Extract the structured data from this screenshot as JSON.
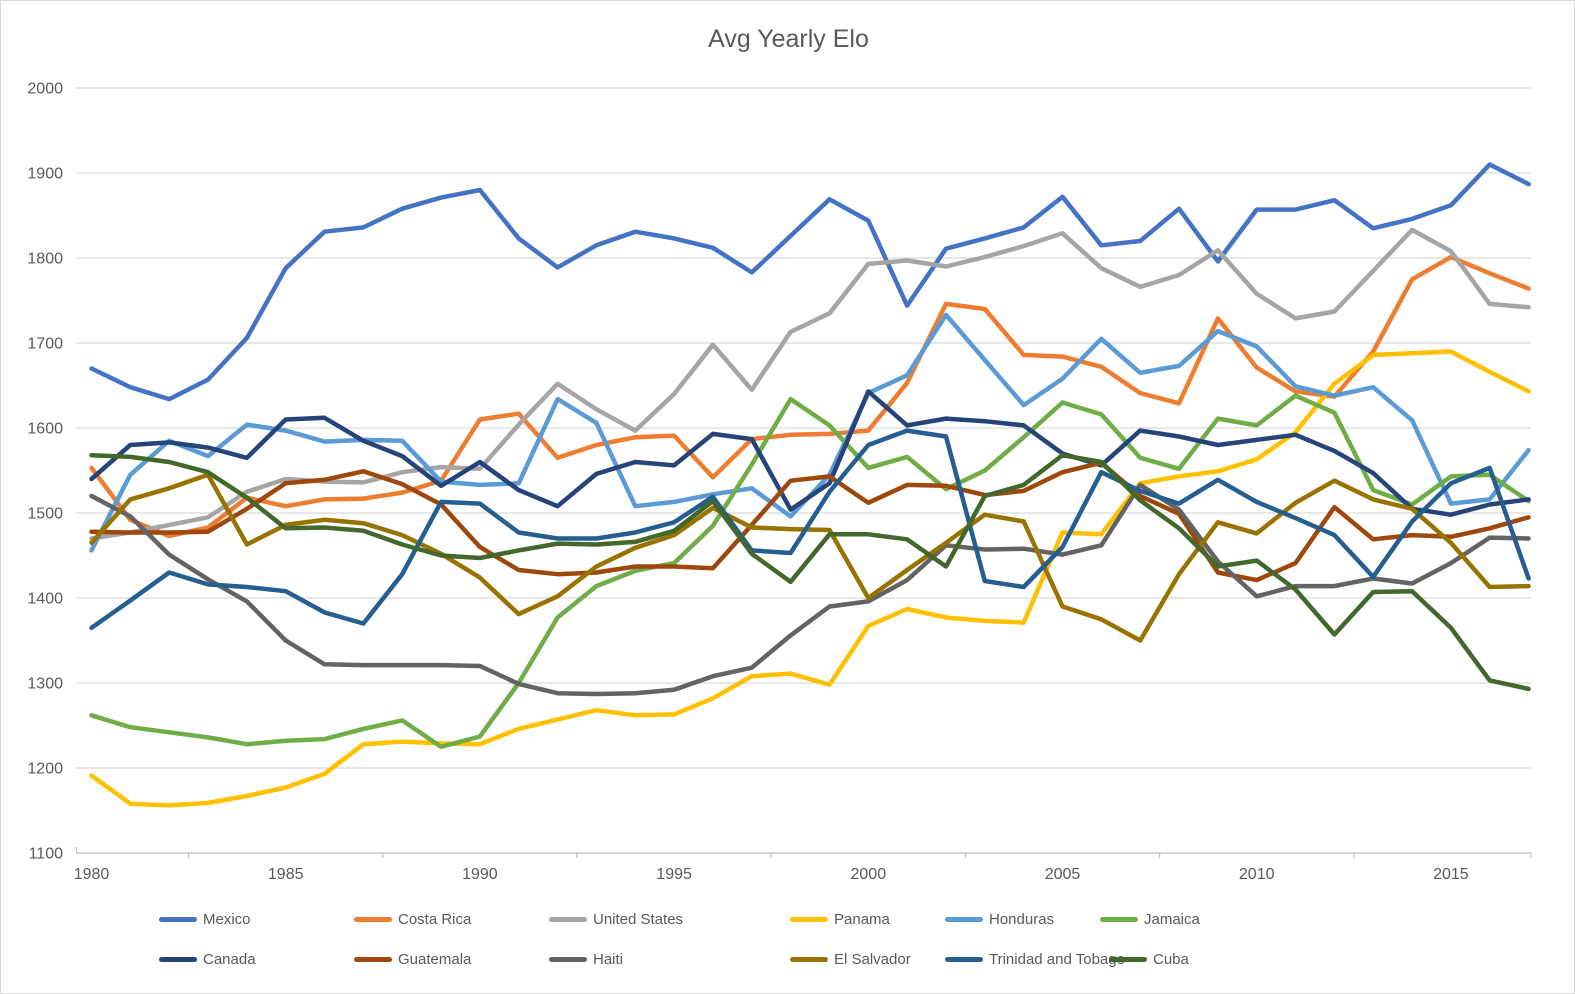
{
  "title": "Avg Yearly Elo",
  "axis": {
    "y_ticks": [
      1100,
      1200,
      1300,
      1400,
      1500,
      1600,
      1700,
      1800,
      1900,
      2000
    ],
    "x_ticks": [
      1980,
      1985,
      1990,
      1995,
      2000,
      2005,
      2010,
      2015
    ],
    "grid_color": "#d9d9d9",
    "axis_line_color": "#bfbfbf",
    "tick_label_color": "#595959"
  },
  "chart_data": {
    "type": "line",
    "title": "Avg Yearly Elo",
    "xlabel": "",
    "ylabel": "",
    "ylim": [
      1100,
      2000
    ],
    "grid": true,
    "legend_position": "bottom",
    "x": [
      1980,
      1981,
      1982,
      1983,
      1984,
      1985,
      1986,
      1987,
      1988,
      1989,
      1990,
      1991,
      1992,
      1993,
      1994,
      1995,
      1996,
      1997,
      1998,
      1999,
      2000,
      2001,
      2002,
      2003,
      2004,
      2005,
      2006,
      2007,
      2008,
      2009,
      2010,
      2011,
      2012,
      2013,
      2014,
      2015,
      2016,
      2017
    ],
    "series": [
      {
        "name": "Mexico",
        "color": "#4472C4",
        "values": [
          1670,
          1648,
          1634,
          1657,
          1706,
          1788,
          1831,
          1836,
          1858,
          1871,
          1880,
          1823,
          1789,
          1815,
          1831,
          1823,
          1812,
          1783,
          1826,
          1869,
          1844,
          1744,
          1811,
          1823,
          1836,
          1872,
          1815,
          1820,
          1858,
          1796,
          1857,
          1857,
          1868,
          1835,
          1846,
          1862,
          1910,
          1887
        ]
      },
      {
        "name": "Costa Rica",
        "color": "#ED7D31",
        "values": [
          1553,
          1492,
          1473,
          1483,
          1518,
          1508,
          1516,
          1517,
          1524,
          1538,
          1610,
          1617,
          1565,
          1580,
          1589,
          1591,
          1542,
          1587,
          1592,
          1593,
          1597,
          1653,
          1746,
          1740,
          1686,
          1684,
          1672,
          1641,
          1629,
          1729,
          1671,
          1643,
          1637,
          1690,
          1775,
          1801,
          1782,
          1764
        ]
      },
      {
        "name": "United States",
        "color": "#A5A5A5",
        "values": [
          1470,
          1477,
          1486,
          1495,
          1525,
          1540,
          1537,
          1536,
          1548,
          1554,
          1552,
          1604,
          1652,
          1622,
          1597,
          1640,
          1698,
          1645,
          1713,
          1735,
          1793,
          1797,
          1790,
          1801,
          1814,
          1829,
          1788,
          1766,
          1780,
          1809,
          1758,
          1729,
          1737,
          1785,
          1833,
          1808,
          1746,
          1742
        ]
      },
      {
        "name": "Panama",
        "color": "#FFC000",
        "values": [
          1191,
          1158,
          1156,
          1159,
          1167,
          1177,
          1193,
          1228,
          1231,
          1229,
          1228,
          1246,
          1257,
          1268,
          1262,
          1263,
          1282,
          1308,
          1311,
          1298,
          1367,
          1387,
          1377,
          1373,
          1371,
          1477,
          1475,
          1535,
          1543,
          1549,
          1563,
          1595,
          1652,
          1686,
          1688,
          1690,
          1666,
          1643
        ]
      },
      {
        "name": "Honduras",
        "color": "#5B9BD5",
        "values": [
          1456,
          1545,
          1585,
          1567,
          1604,
          1597,
          1584,
          1586,
          1585,
          1537,
          1533,
          1535,
          1634,
          1606,
          1508,
          1513,
          1522,
          1529,
          1496,
          1545,
          1641,
          1662,
          1733,
          1680,
          1627,
          1658,
          1705,
          1665,
          1673,
          1714,
          1696,
          1649,
          1638,
          1648,
          1609,
          1511,
          1516,
          1574
        ]
      },
      {
        "name": "Jamaica",
        "color": "#70AD47",
        "values": [
          1262,
          1248,
          1242,
          1236,
          1228,
          1232,
          1234,
          1246,
          1256,
          1225,
          1237,
          1300,
          1377,
          1414,
          1432,
          1441,
          1485,
          1557,
          1634,
          1603,
          1553,
          1566,
          1528,
          1550,
          1589,
          1630,
          1616,
          1565,
          1552,
          1611,
          1603,
          1638,
          1618,
          1527,
          1510,
          1543,
          1545,
          1514
        ]
      },
      {
        "name": "Canada",
        "color": "#264478",
        "values": [
          1540,
          1580,
          1583,
          1577,
          1565,
          1610,
          1612,
          1585,
          1567,
          1532,
          1560,
          1527,
          1508,
          1546,
          1560,
          1556,
          1593,
          1587,
          1504,
          1535,
          1643,
          1603,
          1611,
          1608,
          1603,
          1570,
          1556,
          1597,
          1590,
          1580,
          1586,
          1592,
          1573,
          1547,
          1505,
          1498,
          1510,
          1516
        ]
      },
      {
        "name": "Guatemala",
        "color": "#9E480E",
        "values": [
          1478,
          1477,
          1477,
          1478,
          1505,
          1535,
          1539,
          1549,
          1534,
          1510,
          1460,
          1433,
          1428,
          1430,
          1437,
          1437,
          1435,
          1486,
          1538,
          1543,
          1512,
          1533,
          1532,
          1521,
          1526,
          1548,
          1559,
          1520,
          1499,
          1430,
          1421,
          1441,
          1507,
          1469,
          1474,
          1472,
          1482,
          1495
        ]
      },
      {
        "name": "Haiti",
        "color": "#636363",
        "values": [
          1520,
          1496,
          1451,
          1422,
          1396,
          1350,
          1322,
          1321,
          1321,
          1321,
          1320,
          1299,
          1288,
          1287,
          1288,
          1292,
          1308,
          1318,
          1356,
          1390,
          1396,
          1421,
          1462,
          1457,
          1458,
          1451,
          1462,
          1533,
          1504,
          1443,
          1402,
          1414,
          1414,
          1423,
          1417,
          1441,
          1471,
          1470
        ]
      },
      {
        "name": "El Salvador",
        "color": "#997300",
        "values": [
          1465,
          1516,
          1529,
          1545,
          1463,
          1486,
          1492,
          1488,
          1474,
          1452,
          1424,
          1381,
          1402,
          1437,
          1459,
          1474,
          1506,
          1483,
          1481,
          1480,
          1400,
          1433,
          1465,
          1498,
          1490,
          1390,
          1375,
          1350,
          1428,
          1489,
          1476,
          1512,
          1538,
          1516,
          1505,
          1465,
          1413,
          1414
        ]
      },
      {
        "name": "Trinidad and Tobago",
        "color": "#255E91",
        "values": [
          1365,
          1397,
          1430,
          1416,
          1413,
          1408,
          1383,
          1370,
          1428,
          1513,
          1511,
          1477,
          1470,
          1470,
          1477,
          1489,
          1519,
          1456,
          1453,
          1525,
          1580,
          1597,
          1590,
          1420,
          1413,
          1460,
          1548,
          1526,
          1511,
          1539,
          1513,
          1494,
          1474,
          1425,
          1490,
          1535,
          1553,
          1423
        ]
      },
      {
        "name": "Cuba",
        "color": "#43682B",
        "values": [
          1568,
          1566,
          1560,
          1548,
          1518,
          1482,
          1483,
          1479,
          1463,
          1450,
          1447,
          1456,
          1464,
          1463,
          1466,
          1479,
          1514,
          1452,
          1419,
          1475,
          1475,
          1469,
          1437,
          1520,
          1533,
          1568,
          1560,
          1515,
          1482,
          1437,
          1444,
          1410,
          1357,
          1407,
          1408,
          1365,
          1303,
          1293
        ]
      }
    ]
  },
  "legend": {
    "row1": [
      "Mexico",
      "Costa Rica",
      "United States",
      "Panama",
      "Honduras",
      "Jamaica"
    ],
    "row2": [
      "Canada",
      "Guatemala",
      "Haiti",
      "El Salvador",
      "Trinidad and Tobago",
      "Cuba"
    ]
  }
}
